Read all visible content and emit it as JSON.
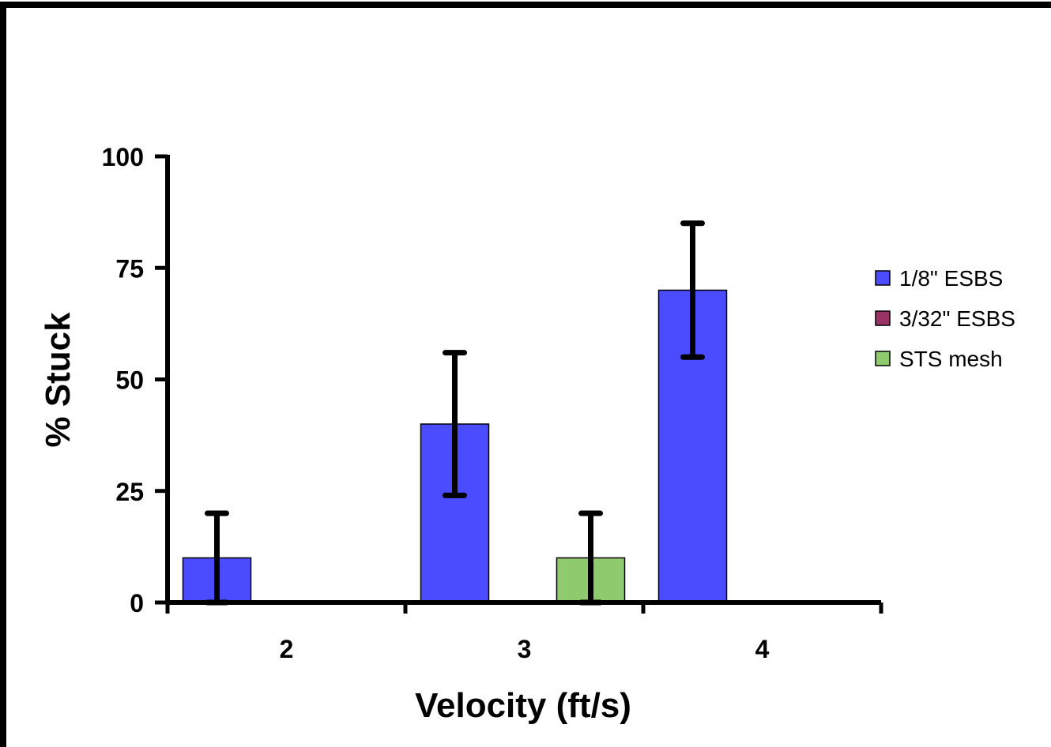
{
  "chart_data": {
    "type": "bar",
    "title": "",
    "xlabel": "Velocity (ft/s)",
    "ylabel": "% Stuck",
    "categories": [
      "2",
      "3",
      "4"
    ],
    "ylim": [
      0,
      100
    ],
    "yticks": [
      "0",
      "25",
      "50",
      "75",
      "100"
    ],
    "grid": false,
    "legend_position": "right",
    "series": [
      {
        "name": "1/8\" ESBS",
        "color": "#4b4bff",
        "values": [
          10,
          40,
          70
        ],
        "error_low": [
          0,
          24,
          55
        ],
        "error_high": [
          20,
          56,
          85
        ]
      },
      {
        "name": "3/32\" ESBS",
        "color": "#993366",
        "values": [
          0,
          0,
          0
        ],
        "error_low": [
          0,
          0,
          0
        ],
        "error_high": [
          0,
          0,
          0
        ]
      },
      {
        "name": "STS mesh",
        "color": "#8fcb6e",
        "values": [
          0,
          10,
          0
        ],
        "error_low": [
          0,
          0,
          0
        ],
        "error_high": [
          0,
          20,
          0
        ]
      }
    ]
  }
}
